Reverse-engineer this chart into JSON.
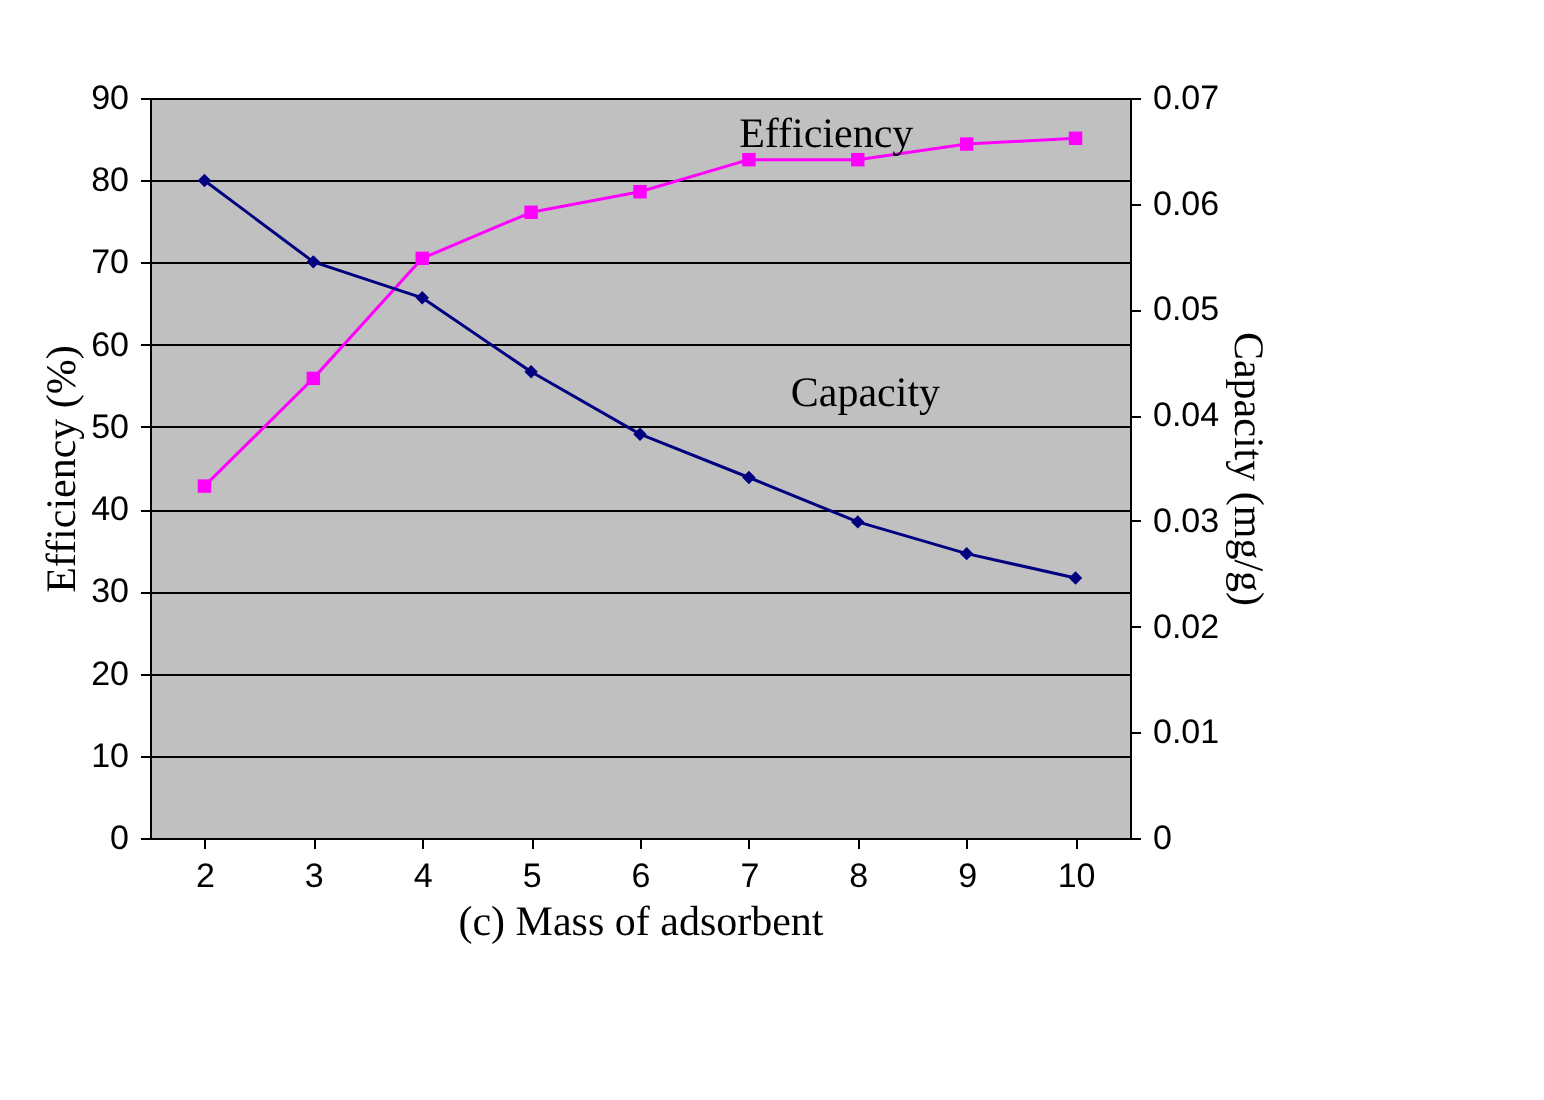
{
  "chart_data": {
    "type": "line",
    "xlabel": "(c) Mass of adsorbent",
    "ylabel": "Efficiency (%)",
    "y2label": "Capacity (mg/g)",
    "categories": [
      "2",
      "3",
      "4",
      "5",
      "6",
      "7",
      "8",
      "9",
      "10"
    ],
    "series": [
      {
        "name": "Efficiency",
        "color": "#ff00ff",
        "marker": "square",
        "values": [
          42.8,
          55.9,
          70.5,
          76.1,
          78.6,
          82.5,
          82.5,
          84.4,
          85.1
        ]
      },
      {
        "name": "Capacity",
        "color": "#000080",
        "marker": "diamond",
        "axis": "y2",
        "values": [
          0.0622,
          0.0545,
          0.0511,
          0.0441,
          0.0382,
          0.0341,
          0.0299,
          0.0269,
          0.0246
        ]
      }
    ],
    "ylim": [
      0,
      90
    ],
    "yticks": [
      0,
      10,
      20,
      30,
      40,
      50,
      60,
      70,
      80,
      90
    ],
    "y2lim": [
      0,
      0.07
    ],
    "y2ticks": [
      0,
      0.01,
      0.02,
      0.03,
      0.04,
      0.05,
      0.06,
      0.07
    ],
    "grid": "y",
    "line_style": "solid"
  }
}
